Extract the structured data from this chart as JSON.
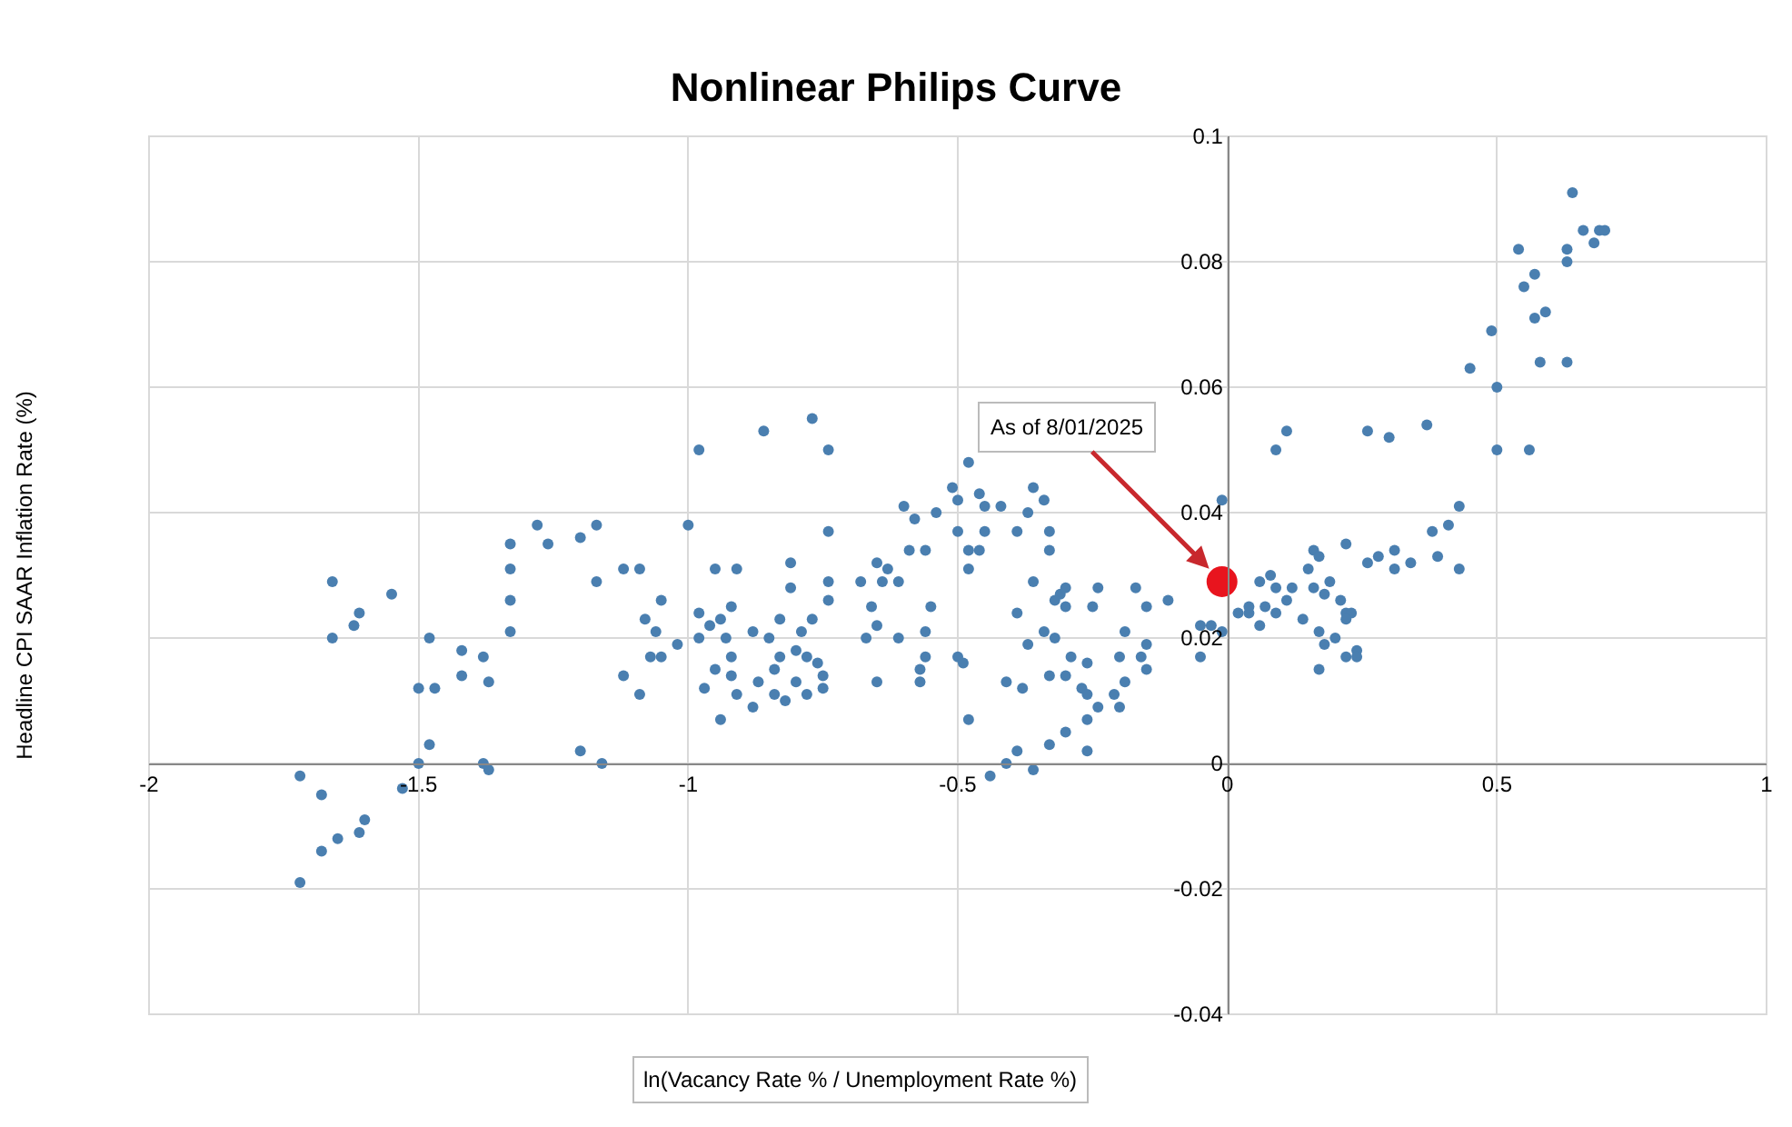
{
  "chart_data": {
    "type": "scatter",
    "title": "Nonlinear Philips Curve",
    "xlabel": "ln(Vacancy Rate % / Unemployment Rate %)",
    "ylabel": "Headline CPI SAAR Inflation Rate (%)",
    "xlim": [
      -2,
      1
    ],
    "ylim": [
      -0.04,
      0.1
    ],
    "xticks": [
      -2,
      -1.5,
      -1,
      -0.5,
      0,
      0.5,
      1
    ],
    "yticks": [
      -0.04,
      -0.02,
      0,
      0.02,
      0.04,
      0.06,
      0.08,
      0.1
    ],
    "grid": true,
    "marker": "circle",
    "annotations": [
      {
        "text": "As of 8/01/2025",
        "x": -0.01,
        "y": 0.029
      }
    ],
    "series": [
      {
        "color": "#4a7fb0",
        "x": [
          -1.72,
          -1.72,
          -1.68,
          -1.68,
          -1.65,
          -1.61,
          -1.6,
          -1.66,
          -1.66,
          -1.62,
          -1.61,
          -1.55,
          -1.53,
          -1.5,
          -1.48,
          -1.5,
          -1.47,
          -1.48,
          -1.42,
          -1.42,
          -1.37,
          -1.38,
          -1.33,
          -1.33,
          -1.33,
          -1.33,
          -1.28,
          -1.26,
          -1.2,
          -1.17,
          -1.17,
          -1.38,
          -1.37,
          -1.2,
          -1.16,
          -1.12,
          -1.09,
          -1.05,
          -1.08,
          -1.06,
          -1.07,
          -1.05,
          -1.12,
          -1.09,
          -1.02,
          -1.0,
          -0.98,
          -0.86,
          -0.77,
          -0.74,
          -0.95,
          -0.91,
          -0.98,
          -0.96,
          -0.98,
          -0.92,
          -0.94,
          -0.93,
          -0.95,
          -0.92,
          -0.92,
          -0.97,
          -0.91,
          -0.94,
          -0.88,
          -0.88,
          -0.87,
          -0.84,
          -0.82,
          -0.85,
          -0.83,
          -0.81,
          -0.81,
          -0.84,
          -0.83,
          -0.8,
          -0.79,
          -0.77,
          -0.78,
          -0.76,
          -0.75,
          -0.75,
          -0.8,
          -0.78,
          -0.74,
          -0.74,
          -0.74,
          -0.68,
          -0.65,
          -0.63,
          -0.64,
          -0.66,
          -0.65,
          -0.67,
          -0.61,
          -0.61,
          -0.59,
          -0.56,
          -0.6,
          -0.58,
          -0.54,
          -0.51,
          -0.55,
          -0.56,
          -0.56,
          -0.65,
          -0.57,
          -0.57,
          -0.48,
          -0.5,
          -0.46,
          -0.45,
          -0.42,
          -0.37,
          -0.36,
          -0.34,
          -0.5,
          -0.45,
          -0.39,
          -0.33,
          -0.33,
          -0.48,
          -0.46,
          -0.48,
          -0.36,
          -0.31,
          -0.3,
          -0.32,
          -0.3,
          -0.24,
          -0.25,
          -0.17,
          -0.15,
          -0.11,
          -0.39,
          -0.34,
          -0.32,
          -0.37,
          -0.19,
          -0.15,
          -0.5,
          -0.49,
          -0.29,
          -0.26,
          -0.2,
          -0.16,
          -0.33,
          -0.3,
          -0.41,
          -0.38,
          -0.27,
          -0.19,
          -0.15,
          -0.26,
          -0.21,
          -0.2,
          -0.24,
          -0.48,
          -0.26,
          -0.3,
          -0.33,
          -0.39,
          -0.26,
          -0.41,
          -0.36,
          -0.44,
          -0.05,
          -0.01,
          -0.05,
          -0.03,
          -0.01,
          0.02,
          0.04,
          0.11,
          0.09,
          0.26,
          0.3,
          0.37,
          0.22,
          0.16,
          0.17,
          0.26,
          0.28,
          0.31,
          0.31,
          0.34,
          0.38,
          0.06,
          0.08,
          0.09,
          0.12,
          0.15,
          0.16,
          0.19,
          0.18,
          0.04,
          0.11,
          0.09,
          0.07,
          0.06,
          0.14,
          0.21,
          0.22,
          0.23,
          0.22,
          0.17,
          0.2,
          0.18,
          0.22,
          0.24,
          0.24,
          0.17,
          0.64,
          0.66,
          0.69,
          0.7,
          0.68,
          0.54,
          0.63,
          0.63,
          0.57,
          0.55,
          0.57,
          0.59,
          0.49,
          0.58,
          0.63,
          0.45,
          0.5,
          0.5,
          0.56,
          0.43,
          0.41,
          0.39,
          0.43
        ],
        "values": [
          -0.019,
          -0.002,
          -0.005,
          -0.014,
          -0.012,
          -0.011,
          -0.009,
          0.029,
          0.02,
          0.022,
          0.024,
          0.027,
          -0.004,
          0.0,
          0.02,
          0.012,
          0.012,
          0.003,
          0.018,
          0.014,
          0.013,
          0.017,
          0.021,
          0.026,
          0.031,
          0.035,
          0.038,
          0.035,
          0.036,
          0.038,
          0.029,
          0.0,
          -0.001,
          0.002,
          0.0,
          0.031,
          0.031,
          0.026,
          0.023,
          0.021,
          0.017,
          0.017,
          0.014,
          0.011,
          0.019,
          0.038,
          0.05,
          0.053,
          0.055,
          0.05,
          0.031,
          0.031,
          0.024,
          0.022,
          0.02,
          0.025,
          0.023,
          0.02,
          0.015,
          0.017,
          0.014,
          0.012,
          0.011,
          0.007,
          0.009,
          0.021,
          0.013,
          0.011,
          0.01,
          0.02,
          0.023,
          0.032,
          0.028,
          0.015,
          0.017,
          0.018,
          0.021,
          0.023,
          0.017,
          0.016,
          0.014,
          0.012,
          0.013,
          0.011,
          0.037,
          0.029,
          0.026,
          0.029,
          0.032,
          0.031,
          0.029,
          0.025,
          0.022,
          0.02,
          0.02,
          0.029,
          0.034,
          0.034,
          0.041,
          0.039,
          0.04,
          0.044,
          0.025,
          0.021,
          0.017,
          0.013,
          0.015,
          0.013,
          0.048,
          0.042,
          0.043,
          0.041,
          0.041,
          0.04,
          0.044,
          0.042,
          0.037,
          0.037,
          0.037,
          0.037,
          0.034,
          0.034,
          0.034,
          0.031,
          0.029,
          0.027,
          0.028,
          0.026,
          0.025,
          0.028,
          0.025,
          0.028,
          0.025,
          0.026,
          0.024,
          0.021,
          0.02,
          0.019,
          0.021,
          0.019,
          0.017,
          0.016,
          0.017,
          0.016,
          0.017,
          0.017,
          0.014,
          0.014,
          0.013,
          0.012,
          0.012,
          0.013,
          0.015,
          0.011,
          0.011,
          0.009,
          0.009,
          0.007,
          0.007,
          0.005,
          0.003,
          0.002,
          0.002,
          0.0,
          -0.001,
          -0.002,
          0.017,
          0.042,
          0.022,
          0.022,
          0.021,
          0.024,
          0.024,
          0.053,
          0.05,
          0.053,
          0.052,
          0.054,
          0.035,
          0.034,
          0.033,
          0.032,
          0.033,
          0.034,
          0.031,
          0.032,
          0.037,
          0.029,
          0.03,
          0.028,
          0.028,
          0.031,
          0.028,
          0.029,
          0.027,
          0.025,
          0.026,
          0.024,
          0.025,
          0.022,
          0.023,
          0.026,
          0.024,
          0.024,
          0.023,
          0.021,
          0.02,
          0.019,
          0.017,
          0.018,
          0.017,
          0.015,
          0.091,
          0.085,
          0.085,
          0.085,
          0.083,
          0.082,
          0.082,
          0.08,
          0.078,
          0.076,
          0.071,
          0.072,
          0.069,
          0.064,
          0.064,
          0.063,
          0.06,
          0.05,
          0.05,
          0.041,
          0.038,
          0.033,
          0.031
        ]
      },
      {
        "color": "#e8141e",
        "x": [
          -0.01
        ],
        "values": [
          0.029
        ]
      }
    ]
  }
}
